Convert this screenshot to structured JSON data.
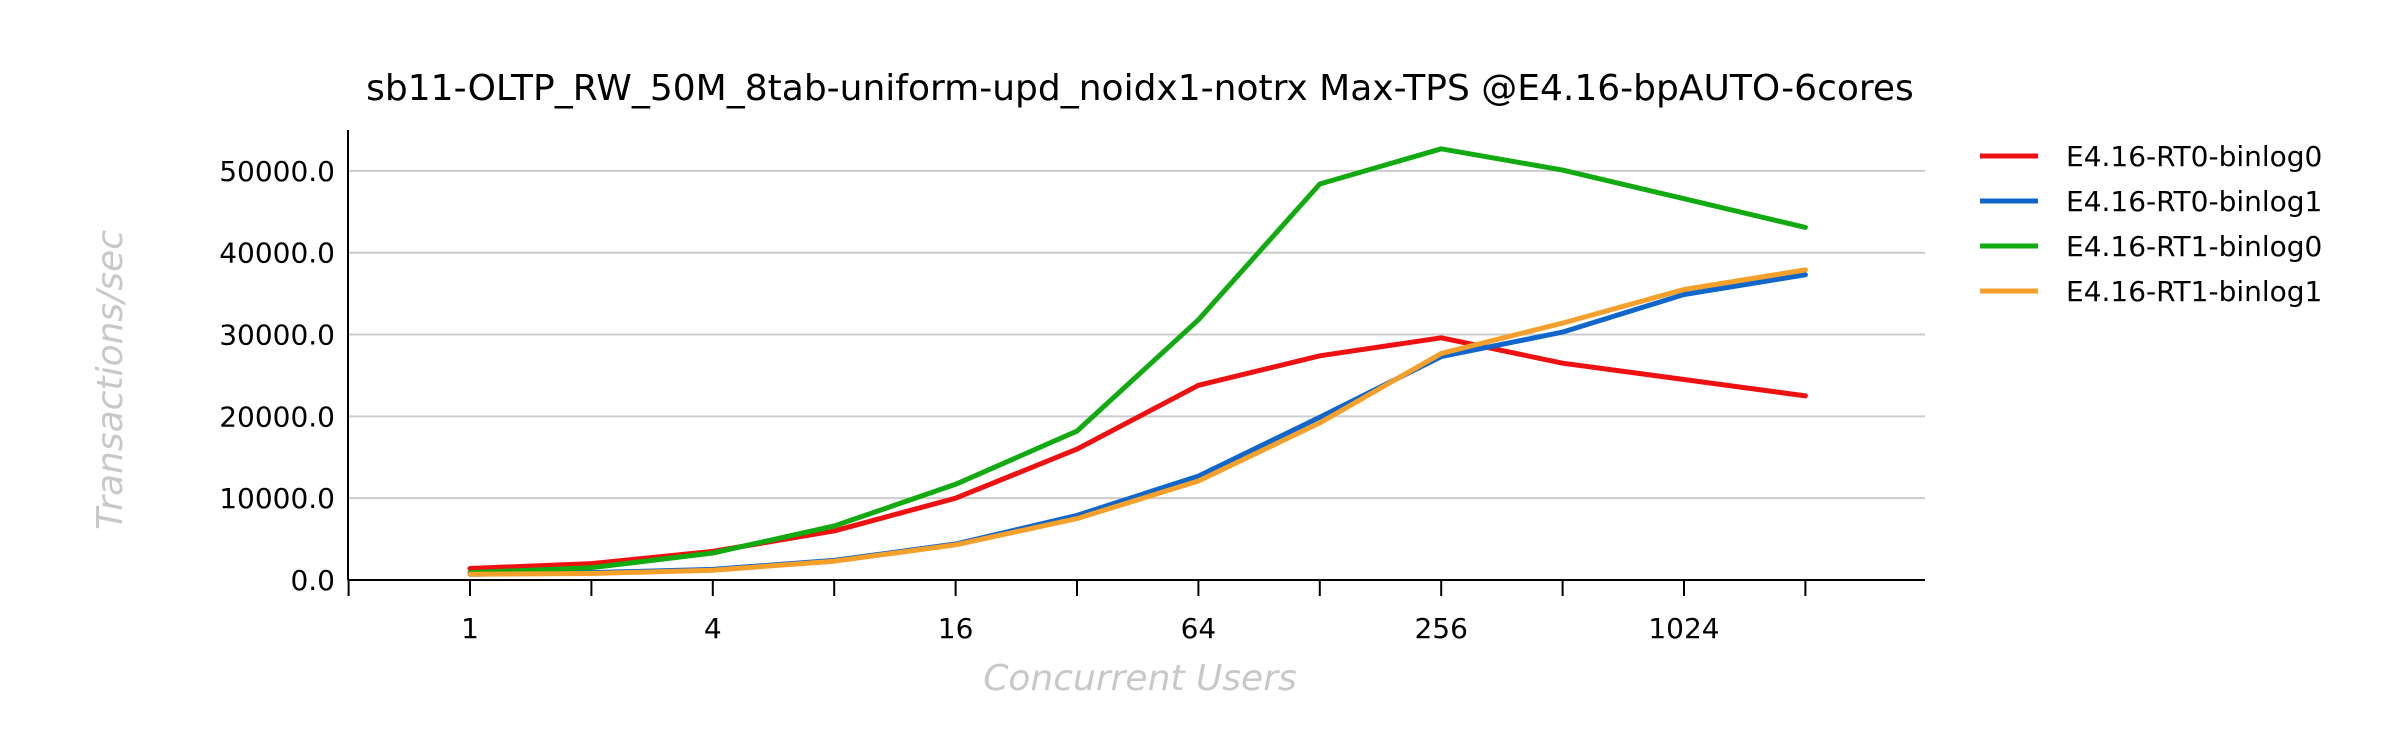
{
  "chart_data": {
    "type": "line",
    "title": "sb11-OLTP_RW_50M_8tab-uniform-upd_noidx1-notrx Max-TPS @E4.16-bpAUTO-6cores",
    "xlabel": "Concurrent Users",
    "ylabel": "Transactions/sec",
    "x": [
      1,
      2,
      4,
      8,
      16,
      32,
      64,
      128,
      256,
      512,
      1024,
      2048
    ],
    "xticks": [
      1,
      4,
      16,
      64,
      256,
      1024
    ],
    "xtick_labels": [
      "1",
      "4",
      "16",
      "64",
      "256",
      "1024"
    ],
    "x_scale": "log2",
    "ylim": [
      0,
      55000
    ],
    "yticks": [
      0,
      10000,
      20000,
      30000,
      40000,
      50000
    ],
    "ytick_labels": [
      "0.0",
      "10000.0",
      "20000.0",
      "30000.0",
      "40000.0",
      "50000.0"
    ],
    "grid": "horizontal",
    "legend_position": "right",
    "series": [
      {
        "name": "E4.16-RT0-binlog0",
        "color": "#ee1111",
        "values": [
          1400,
          2000,
          3500,
          6000,
          10000,
          16000,
          23800,
          27400,
          29600,
          26500,
          24500,
          22500
        ]
      },
      {
        "name": "E4.16-RT0-binlog1",
        "color": "#1166cc",
        "values": [
          700,
          900,
          1300,
          2400,
          4400,
          7900,
          12700,
          19900,
          27300,
          30300,
          34900,
          37300
        ]
      },
      {
        "name": "E4.16-RT1-binlog0",
        "color": "#11aa11",
        "values": [
          900,
          1500,
          3300,
          6600,
          11700,
          18200,
          31800,
          48400,
          52700,
          50100,
          46600,
          43100
        ]
      },
      {
        "name": "E4.16-RT1-binlog1",
        "color": "#f5a02a",
        "values": [
          700,
          800,
          1200,
          2300,
          4300,
          7500,
          12100,
          19200,
          27700,
          31400,
          35500,
          37900
        ]
      }
    ]
  }
}
